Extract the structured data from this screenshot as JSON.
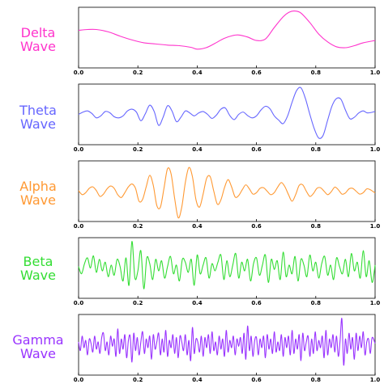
{
  "chart_data": [
    {
      "type": "line",
      "name": "Delta Wave",
      "title_lines": [
        "Delta",
        "Wave"
      ],
      "color": "#ff33cc",
      "xlim": [
        0.0,
        1.0
      ],
      "xticks": [
        "0.0",
        "0.2",
        "0.4",
        "0.6",
        "0.8",
        "1.0"
      ],
      "grid": false,
      "x": [
        0.0,
        0.03,
        0.06,
        0.1,
        0.14,
        0.18,
        0.22,
        0.26,
        0.3,
        0.34,
        0.38,
        0.4,
        0.43,
        0.46,
        0.49,
        0.52,
        0.54,
        0.57,
        0.6,
        0.63,
        0.66,
        0.69,
        0.71,
        0.73,
        0.75,
        0.78,
        0.81,
        0.84,
        0.87,
        0.9,
        0.93,
        0.96,
        1.0
      ],
      "y": [
        0.25,
        0.28,
        0.28,
        0.2,
        0.05,
        -0.08,
        -0.18,
        -0.22,
        -0.26,
        -0.28,
        -0.34,
        -0.4,
        -0.35,
        -0.2,
        -0.03,
        0.07,
        0.09,
        0.02,
        -0.1,
        -0.05,
        0.35,
        0.72,
        0.88,
        0.92,
        0.85,
        0.52,
        0.12,
        -0.15,
        -0.32,
        -0.35,
        -0.28,
        -0.18,
        -0.1
      ]
    },
    {
      "type": "line",
      "name": "Theta Wave",
      "title_lines": [
        "Theta",
        "Wave"
      ],
      "color": "#6666ff",
      "xlim": [
        0.0,
        1.0
      ],
      "xticks": [
        "0.0",
        "0.2",
        "0.4",
        "0.6",
        "0.8",
        "1.0"
      ],
      "grid": false,
      "x": [
        0.0,
        0.015,
        0.03,
        0.045,
        0.06,
        0.075,
        0.09,
        0.105,
        0.12,
        0.135,
        0.15,
        0.165,
        0.18,
        0.195,
        0.21,
        0.225,
        0.24,
        0.255,
        0.27,
        0.285,
        0.3,
        0.315,
        0.33,
        0.345,
        0.36,
        0.375,
        0.39,
        0.405,
        0.42,
        0.435,
        0.45,
        0.465,
        0.48,
        0.495,
        0.51,
        0.525,
        0.54,
        0.555,
        0.57,
        0.585,
        0.6,
        0.615,
        0.63,
        0.645,
        0.66,
        0.675,
        0.69,
        0.705,
        0.72,
        0.735,
        0.75,
        0.765,
        0.78,
        0.795,
        0.81,
        0.825,
        0.84,
        0.855,
        0.87,
        0.885,
        0.9,
        0.915,
        0.93,
        0.945,
        0.96,
        0.975,
        1.0
      ],
      "y": [
        0.0,
        0.08,
        0.12,
        0.03,
        -0.12,
        -0.05,
        0.1,
        0.06,
        -0.08,
        -0.12,
        -0.05,
        0.12,
        0.18,
        0.08,
        -0.22,
        0.02,
        0.32,
        0.1,
        -0.38,
        -0.1,
        0.3,
        0.12,
        -0.25,
        -0.1,
        0.12,
        0.05,
        -0.05,
        0.05,
        0.1,
        0.0,
        -0.14,
        -0.02,
        0.18,
        0.22,
        -0.04,
        -0.18,
        0.0,
        0.08,
        -0.04,
        -0.12,
        -0.05,
        0.15,
        0.28,
        0.2,
        -0.05,
        -0.2,
        -0.32,
        -0.05,
        0.42,
        0.82,
        0.92,
        0.55,
        0.0,
        -0.5,
        -0.82,
        -0.72,
        -0.2,
        0.3,
        0.55,
        0.52,
        0.15,
        -0.15,
        -0.1,
        0.05,
        0.12,
        0.05,
        0.1
      ]
    },
    {
      "type": "line",
      "name": "Alpha Wave",
      "title_lines": [
        "Alpha",
        "Wave"
      ],
      "color": "#ff9933",
      "xlim": [
        0.0,
        1.0
      ],
      "xticks": [
        "0.0",
        "0.2",
        "0.4",
        "0.6",
        "0.8",
        "1.0"
      ],
      "grid": false,
      "x": [
        0.0,
        0.012,
        0.024,
        0.036,
        0.048,
        0.06,
        0.072,
        0.084,
        0.096,
        0.108,
        0.12,
        0.132,
        0.144,
        0.156,
        0.168,
        0.18,
        0.192,
        0.204,
        0.216,
        0.228,
        0.24,
        0.252,
        0.264,
        0.276,
        0.288,
        0.3,
        0.312,
        0.324,
        0.336,
        0.348,
        0.36,
        0.372,
        0.384,
        0.396,
        0.408,
        0.42,
        0.432,
        0.444,
        0.456,
        0.468,
        0.48,
        0.492,
        0.504,
        0.516,
        0.528,
        0.54,
        0.552,
        0.564,
        0.576,
        0.588,
        0.6,
        0.612,
        0.624,
        0.636,
        0.648,
        0.66,
        0.672,
        0.684,
        0.696,
        0.708,
        0.72,
        0.732,
        0.744,
        0.756,
        0.768,
        0.78,
        0.792,
        0.804,
        0.816,
        0.828,
        0.84,
        0.852,
        0.864,
        0.876,
        0.888,
        0.9,
        0.912,
        0.924,
        0.936,
        0.948,
        0.96,
        0.972,
        0.984,
        1.0
      ],
      "y": [
        0.02,
        -0.12,
        -0.05,
        0.1,
        0.15,
        0.02,
        -0.18,
        -0.1,
        0.08,
        0.18,
        0.1,
        -0.12,
        -0.22,
        -0.05,
        0.15,
        0.25,
        0.1,
        -0.35,
        -0.28,
        0.15,
        0.55,
        0.2,
        -0.5,
        -0.55,
        0.1,
        0.78,
        0.6,
        -0.25,
        -0.92,
        -0.55,
        0.3,
        0.82,
        0.5,
        -0.3,
        -0.55,
        -0.1,
        0.45,
        0.5,
        0.0,
        -0.45,
        -0.3,
        0.12,
        0.4,
        0.15,
        -0.2,
        -0.15,
        0.05,
        0.22,
        0.08,
        -0.1,
        -0.05,
        0.1,
        0.12,
        0.0,
        -0.12,
        -0.05,
        0.15,
        0.3,
        0.15,
        -0.12,
        -0.35,
        -0.12,
        0.2,
        0.22,
        0.0,
        -0.18,
        -0.08,
        0.1,
        0.12,
        0.0,
        -0.12,
        -0.02,
        0.14,
        0.05,
        -0.1,
        -0.06,
        0.08,
        0.1,
        0.0,
        -0.1,
        -0.05,
        0.08,
        0.05,
        -0.06
      ]
    },
    {
      "type": "line",
      "name": "Beta Wave",
      "title_lines": [
        "Beta",
        "Wave"
      ],
      "color": "#33dd33",
      "xlim": [
        0.0,
        1.0
      ],
      "xticks": [
        "0.0",
        "0.2",
        "0.4",
        "0.6",
        "0.8",
        "1.0"
      ],
      "grid": false,
      "x": [
        0.0,
        0.01,
        0.02,
        0.03,
        0.04,
        0.05,
        0.06,
        0.07,
        0.08,
        0.09,
        0.1,
        0.11,
        0.12,
        0.13,
        0.14,
        0.15,
        0.16,
        0.17,
        0.18,
        0.19,
        0.2,
        0.21,
        0.22,
        0.23,
        0.24,
        0.25,
        0.26,
        0.27,
        0.28,
        0.29,
        0.3,
        0.31,
        0.32,
        0.33,
        0.34,
        0.35,
        0.36,
        0.37,
        0.38,
        0.39,
        0.4,
        0.41,
        0.42,
        0.43,
        0.44,
        0.45,
        0.46,
        0.47,
        0.48,
        0.49,
        0.5,
        0.51,
        0.52,
        0.53,
        0.54,
        0.55,
        0.56,
        0.57,
        0.58,
        0.59,
        0.6,
        0.61,
        0.62,
        0.63,
        0.64,
        0.65,
        0.66,
        0.67,
        0.68,
        0.69,
        0.7,
        0.71,
        0.72,
        0.73,
        0.74,
        0.75,
        0.76,
        0.77,
        0.78,
        0.79,
        0.8,
        0.81,
        0.82,
        0.83,
        0.84,
        0.85,
        0.86,
        0.87,
        0.88,
        0.89,
        0.9,
        0.91,
        0.92,
        0.93,
        0.94,
        0.95,
        0.96,
        0.97,
        0.98,
        0.99,
        1.0
      ],
      "y": [
        0.05,
        -0.2,
        0.15,
        0.35,
        0.0,
        0.42,
        -0.15,
        0.3,
        -0.1,
        0.2,
        -0.3,
        0.1,
        -0.25,
        0.3,
        0.05,
        -0.45,
        0.35,
        -0.6,
        0.92,
        -0.35,
        -0.1,
        0.6,
        -0.72,
        0.35,
        0.15,
        -0.4,
        0.3,
        -0.1,
        0.25,
        -0.35,
        0.05,
        0.4,
        -0.2,
        0.1,
        -0.45,
        0.3,
        0.2,
        -0.15,
        0.3,
        -0.6,
        0.45,
        -0.2,
        0.1,
        0.35,
        -0.35,
        0.15,
        -0.1,
        0.2,
        0.45,
        -0.4,
        0.25,
        -0.3,
        0.1,
        0.5,
        -0.35,
        0.2,
        -0.1,
        0.3,
        -0.45,
        0.15,
        0.35,
        -0.25,
        0.1,
        0.45,
        -0.5,
        0.3,
        -0.05,
        0.25,
        -0.4,
        0.55,
        -0.3,
        0.1,
        -0.2,
        0.4,
        -0.45,
        0.3,
        0.1,
        -0.3,
        0.45,
        -0.1,
        0.2,
        -0.35,
        0.15,
        0.4,
        -0.25,
        0.1,
        -0.4,
        0.35,
        0.05,
        -0.2,
        0.3,
        -0.3,
        0.5,
        -0.1,
        0.2,
        -0.35,
        0.6,
        -0.3,
        0.25,
        -0.5,
        0.1
      ]
    },
    {
      "type": "line",
      "name": "Gamma Wave",
      "title_lines": [
        "Gamma",
        "Wave"
      ],
      "color": "#9933ff",
      "xlim": [
        0.0,
        1.0
      ],
      "xticks": [
        "0.0",
        "0.2",
        "0.4",
        "0.6",
        "0.8",
        "1.0"
      ],
      "grid": false,
      "x": [
        0.0,
        0.006,
        0.012,
        0.018,
        0.024,
        0.03,
        0.036,
        0.042,
        0.048,
        0.054,
        0.06,
        0.066,
        0.072,
        0.078,
        0.084,
        0.09,
        0.096,
        0.102,
        0.108,
        0.114,
        0.12,
        0.126,
        0.132,
        0.138,
        0.144,
        0.15,
        0.156,
        0.162,
        0.168,
        0.174,
        0.18,
        0.186,
        0.192,
        0.198,
        0.204,
        0.21,
        0.216,
        0.222,
        0.228,
        0.234,
        0.24,
        0.246,
        0.252,
        0.258,
        0.264,
        0.27,
        0.276,
        0.282,
        0.288,
        0.294,
        0.3,
        0.306,
        0.312,
        0.318,
        0.324,
        0.33,
        0.336,
        0.342,
        0.348,
        0.354,
        0.36,
        0.366,
        0.372,
        0.378,
        0.384,
        0.39,
        0.396,
        0.402,
        0.408,
        0.414,
        0.42,
        0.426,
        0.432,
        0.438,
        0.444,
        0.45,
        0.456,
        0.462,
        0.468,
        0.474,
        0.48,
        0.486,
        0.492,
        0.498,
        0.504,
        0.51,
        0.516,
        0.522,
        0.528,
        0.534,
        0.54,
        0.546,
        0.552,
        0.558,
        0.564,
        0.57,
        0.576,
        0.582,
        0.588,
        0.594,
        0.6,
        0.606,
        0.612,
        0.618,
        0.624,
        0.63,
        0.636,
        0.642,
        0.648,
        0.654,
        0.66,
        0.666,
        0.672,
        0.678,
        0.684,
        0.69,
        0.696,
        0.702,
        0.708,
        0.714,
        0.72,
        0.726,
        0.732,
        0.738,
        0.744,
        0.75,
        0.756,
        0.762,
        0.768,
        0.774,
        0.78,
        0.786,
        0.792,
        0.798,
        0.804,
        0.81,
        0.816,
        0.822,
        0.828,
        0.834,
        0.84,
        0.846,
        0.852,
        0.858,
        0.864,
        0.87,
        0.876,
        0.882,
        0.888,
        0.894,
        0.9,
        0.906,
        0.912,
        0.918,
        0.924,
        0.93,
        0.936,
        0.942,
        0.948,
        0.954,
        0.96,
        0.966,
        0.972,
        0.978,
        0.984,
        0.99,
        1.0
      ],
      "y": [
        0.1,
        -0.2,
        0.3,
        -0.1,
        0.15,
        -0.35,
        0.2,
        0.05,
        -0.25,
        0.3,
        -0.15,
        0.1,
        -0.3,
        0.25,
        0.4,
        -0.2,
        0.1,
        -0.35,
        0.3,
        -0.05,
        0.2,
        -0.4,
        0.55,
        -0.3,
        0.2,
        -0.15,
        0.35,
        -0.45,
        0.15,
        0.3,
        -0.6,
        0.4,
        -0.2,
        0.25,
        -0.35,
        0.1,
        0.45,
        -0.3,
        0.2,
        -0.1,
        0.3,
        -0.5,
        0.35,
        -0.15,
        0.1,
        0.4,
        -0.35,
        0.2,
        -0.25,
        0.5,
        -0.4,
        0.15,
        -0.1,
        0.35,
        -0.3,
        0.25,
        -0.45,
        0.3,
        0.1,
        -0.2,
        0.35,
        -0.35,
        0.15,
        -0.55,
        0.6,
        -0.3,
        0.2,
        0.1,
        -0.25,
        0.3,
        -0.4,
        0.25,
        -0.1,
        0.35,
        -0.3,
        0.45,
        -0.2,
        0.1,
        -0.35,
        0.3,
        -0.15,
        0.2,
        -0.4,
        0.5,
        -0.25,
        0.15,
        -0.1,
        0.3,
        -0.35,
        0.2,
        -0.05,
        0.25,
        -0.3,
        0.4,
        -0.5,
        0.65,
        -0.2,
        0.3,
        -0.4,
        0.15,
        0.25,
        -0.35,
        0.2,
        -0.1,
        0.3,
        -0.45,
        0.35,
        -0.15,
        0.2,
        -0.3,
        0.45,
        -0.25,
        0.1,
        -0.2,
        0.35,
        -0.4,
        0.25,
        -0.1,
        0.3,
        -0.35,
        0.5,
        -0.3,
        0.2,
        -0.15,
        0.35,
        -0.55,
        0.4,
        -0.2,
        0.1,
        0.3,
        -0.4,
        0.2,
        -0.3,
        0.45,
        -0.2,
        0.15,
        -0.1,
        0.3,
        -0.45,
        0.5,
        -0.35,
        0.2,
        -0.1,
        0.35,
        -0.25,
        0.3,
        -0.4,
        0.15,
        0.9,
        -0.7,
        0.2,
        -0.3,
        0.4,
        -0.15,
        0.25,
        -0.5,
        0.4,
        -0.2,
        0.3,
        -0.1,
        0.45,
        -0.35,
        0.1,
        0.2,
        -0.3,
        0.25,
        0.05
      ]
    }
  ]
}
